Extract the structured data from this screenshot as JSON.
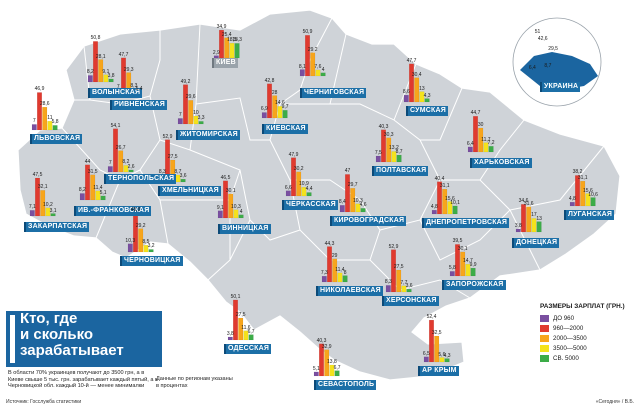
{
  "title": {
    "lines": [
      "Кто, где",
      "и сколько",
      "зарабатывает"
    ]
  },
  "lead": "В области 70% украинцев получают до 3500 грн, а в Киеве свыше 5 тыс. грн. зарабатывает каждый пятый, а в Черновицкой обл. каждый 10-й — менее минималки",
  "note": "Данные по регионам указаны в процентах",
  "source": "Источник: Госслужба статистики",
  "credit": "«Сегодня» / В.Б.",
  "legend": {
    "title": "РАЗМЕРЫ ЗАРПЛАТ (ГРН.)",
    "items": [
      {
        "label": "ДО 960",
        "color": "#7a4fa0"
      },
      {
        "label": "960—2000",
        "color": "#e03a2f"
      },
      {
        "label": "2000—3500",
        "color": "#f7a51c"
      },
      {
        "label": "3500—5000",
        "color": "#f4e21c"
      },
      {
        "label": "СВ. 5000",
        "color": "#3cac48"
      }
    ]
  },
  "colors": {
    "map_fill": "#cfd3d8",
    "border": "#ffffff",
    "tag": "#1c6fa7",
    "ocean": "#ffffff"
  },
  "chart_data": {
    "type": "bar",
    "categories": [
      "до 960",
      "960—2000",
      "2000—3500",
      "3500—5000",
      "св. 5000"
    ],
    "unit": "%",
    "series": [
      {
        "name": "КИЕВ",
        "values": [
          2.9,
          34.9,
          25.4,
          18.5,
          18.3
        ]
      },
      {
        "name": "ЧЕРНИГОВСКАЯ",
        "values": [
          8.1,
          50.9,
          29.2,
          7.6,
          4.0
        ]
      },
      {
        "name": "УКРАИНА",
        "values": [
          6.4,
          51.0,
          42.6,
          8.7,
          29.5
        ]
      },
      {
        "name": "ВОЛЫНСКАЯ",
        "values": [
          8.2,
          50.8,
          28.1,
          9.1,
          3.8
        ]
      },
      {
        "name": "РИВНЕНСКАЯ",
        "values": [
          7.0,
          47.7,
          29.3,
          8.3,
          5.4
        ]
      },
      {
        "name": "СУМСКАЯ",
        "values": [
          8.6,
          47.7,
          30.4,
          13.0,
          4.3
        ]
      },
      {
        "name": "ЖИТОМИРСКАЯ",
        "values": [
          7.0,
          49.2,
          29.6,
          10.0,
          3.3
        ]
      },
      {
        "name": "КИЕВСКАЯ",
        "values": [
          6.9,
          42.8,
          28.0,
          14.6,
          9.7
        ]
      },
      {
        "name": "ЛЬВОВСКАЯ",
        "values": [
          7.0,
          46.9,
          28.6,
          11.0,
          5.8
        ]
      },
      {
        "name": "ТЕРНОПОЛЬСКАЯ",
        "values": [
          7.0,
          54.1,
          26.7,
          8.2,
          2.6
        ]
      },
      {
        "name": "ХМЕЛЬНИЦКАЯ",
        "values": [
          8.3,
          52.9,
          27.5,
          8.7,
          3.6
        ]
      },
      {
        "name": "ПОЛТАВСКАЯ",
        "values": [
          7.5,
          40.3,
          30.3,
          13.2,
          8.7
        ]
      },
      {
        "name": "ХАРЬКОВСКАЯ",
        "values": [
          6.4,
          44.7,
          30.0,
          11.7,
          7.2
        ]
      },
      {
        "name": "ЗАКАРПАТСКАЯ",
        "values": [
          7.1,
          47.5,
          32.1,
          10.2,
          3.1
        ]
      },
      {
        "name": "ИВ.-ФРАНКОВСКАЯ",
        "values": [
          8.2,
          44.0,
          31.5,
          11.4,
          5.1
        ]
      },
      {
        "name": "ЧЕРНОВИЦКАЯ",
        "values": [
          10.3,
          48.9,
          29.2,
          8.5,
          3.2
        ]
      },
      {
        "name": "ВИННИЦКАЯ",
        "values": [
          9.1,
          46.5,
          30.1,
          10.3,
          4.0
        ]
      },
      {
        "name": "ЧЕРКАССКАЯ",
        "values": [
          6.6,
          47.9,
          30.2,
          10.9,
          4.4
        ]
      },
      {
        "name": "КИРОВОГРАДСКАЯ",
        "values": [
          8.4,
          47.0,
          29.7,
          10.3,
          4.6
        ]
      },
      {
        "name": "ДНЕПРОПЕТРОВСКАЯ",
        "values": [
          4.8,
          40.4,
          31.1,
          15.6,
          10.1
        ]
      },
      {
        "name": "ЛУГАНСКАЯ",
        "values": [
          4.8,
          38.2,
          31.1,
          15.6,
          10.6
        ]
      },
      {
        "name": "ДОНЕЦКАЯ",
        "values": [
          3.8,
          34.6,
          31.6,
          17.0,
          13.0
        ]
      },
      {
        "name": "НИКОЛАЕВСКАЯ",
        "values": [
          7.3,
          44.3,
          29.0,
          11.4,
          8.0
        ]
      },
      {
        "name": "ХЕРСОНСКАЯ",
        "values": [
          8.3,
          52.9,
          27.5,
          7.7,
          3.6
        ]
      },
      {
        "name": "ЗАПОРОЖСКАЯ",
        "values": [
          5.8,
          39.5,
          30.1,
          14.7,
          9.9
        ]
      },
      {
        "name": "ОДЕССКАЯ",
        "values": [
          3.8,
          50.1,
          27.5,
          11.6,
          6.7
        ]
      },
      {
        "name": "АР КРЫМ",
        "values": [
          6.5,
          52.4,
          32.5,
          5.6,
          4.3
        ]
      },
      {
        "name": "СЕВАСТОПОЛЬ",
        "values": [
          5.1,
          40.3,
          32.9,
          13.8,
          6.7
        ]
      }
    ]
  }
}
